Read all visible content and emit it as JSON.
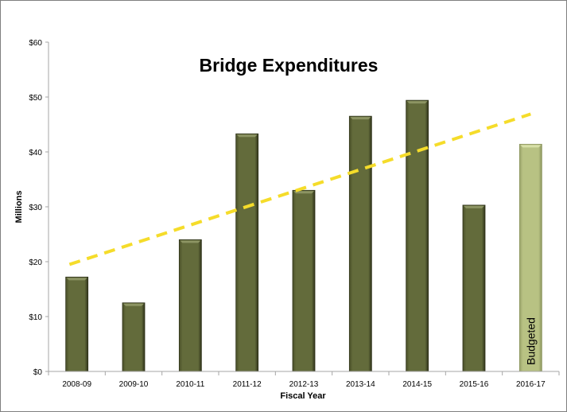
{
  "chart_data": {
    "type": "bar",
    "title": "Bridge Expenditures",
    "xlabel": "Fiscal Year",
    "ylabel": "Millions",
    "ylim": [
      0,
      60
    ],
    "yticks": [
      0,
      10,
      20,
      30,
      40,
      50,
      60
    ],
    "ytick_labels": [
      "$0",
      "$10",
      "$20",
      "$30",
      "$40",
      "$50",
      "$60"
    ],
    "categories": [
      "2008-09",
      "2009-10",
      "2010-11",
      "2011-12",
      "2012-13",
      "2013-14",
      "2014-15",
      "2015-16",
      "2016-17"
    ],
    "values": [
      17.2,
      12.5,
      24.0,
      43.3,
      33.0,
      46.5,
      49.4,
      30.3,
      41.4
    ],
    "bar_annotation": {
      "category": "2016-17",
      "text": "Budgeted"
    },
    "trendline": {
      "type": "linear",
      "style": "dashed",
      "start": 19.5,
      "end": 46.9
    },
    "grid": false,
    "legend": "none",
    "colors": {
      "actual": "#636b3b",
      "budgeted": "#b8c283",
      "trend": "#f5dc2a",
      "axis": "#a6a6a6"
    }
  }
}
